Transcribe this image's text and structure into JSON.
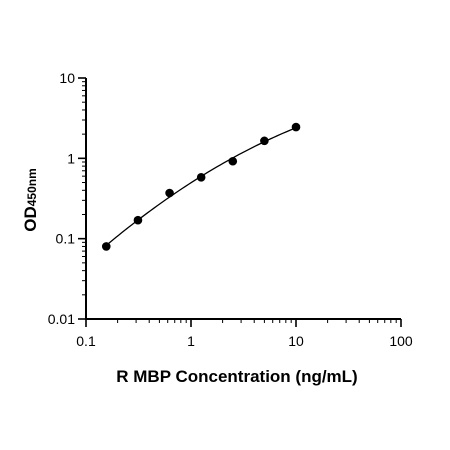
{
  "chart_data": {
    "type": "scatter",
    "x_scale": "log",
    "y_scale": "log",
    "xlabel": "R MBP Concentration (ng/mL)",
    "ylabel_main": "OD",
    "ylabel_sub": "450nm",
    "xlim": [
      0.1,
      100
    ],
    "ylim": [
      0.01,
      10
    ],
    "x_ticks": [
      0.1,
      1,
      10,
      100
    ],
    "x_tick_labels": [
      "0.1",
      "1",
      "10",
      "100"
    ],
    "y_ticks": [
      0.01,
      0.1,
      1,
      10
    ],
    "y_tick_labels": [
      "0.01",
      "0.1",
      "1",
      "10"
    ],
    "grid": false,
    "series": [
      {
        "points": [
          {
            "x": 0.156,
            "y": 0.08
          },
          {
            "x": 0.3125,
            "y": 0.17
          },
          {
            "x": 0.625,
            "y": 0.37
          },
          {
            "x": 1.25,
            "y": 0.58
          },
          {
            "x": 2.5,
            "y": 0.92
          },
          {
            "x": 5,
            "y": 1.65
          },
          {
            "x": 10,
            "y": 2.45
          }
        ]
      }
    ],
    "fit_curve": true,
    "color": "#000000"
  }
}
